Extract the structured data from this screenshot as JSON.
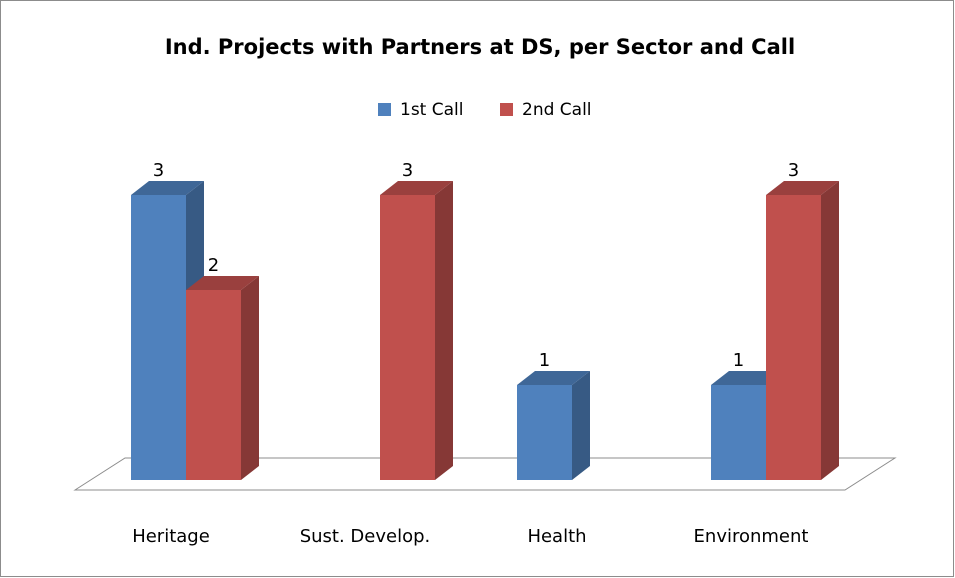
{
  "chart_data": {
    "type": "bar3d",
    "title": "Ind. Projects with Partners at DS, per Sector and Call",
    "categories": [
      "Heritage",
      "Sust. Develop.",
      "Health",
      "Environment"
    ],
    "series": [
      {
        "name": "1st Call",
        "color": "#4f81bd",
        "values": [
          3,
          null,
          1,
          1
        ]
      },
      {
        "name": "2nd Call",
        "color": "#c0504d",
        "values": [
          2,
          3,
          null,
          3
        ]
      }
    ],
    "data_labels": true,
    "legend": "top"
  }
}
